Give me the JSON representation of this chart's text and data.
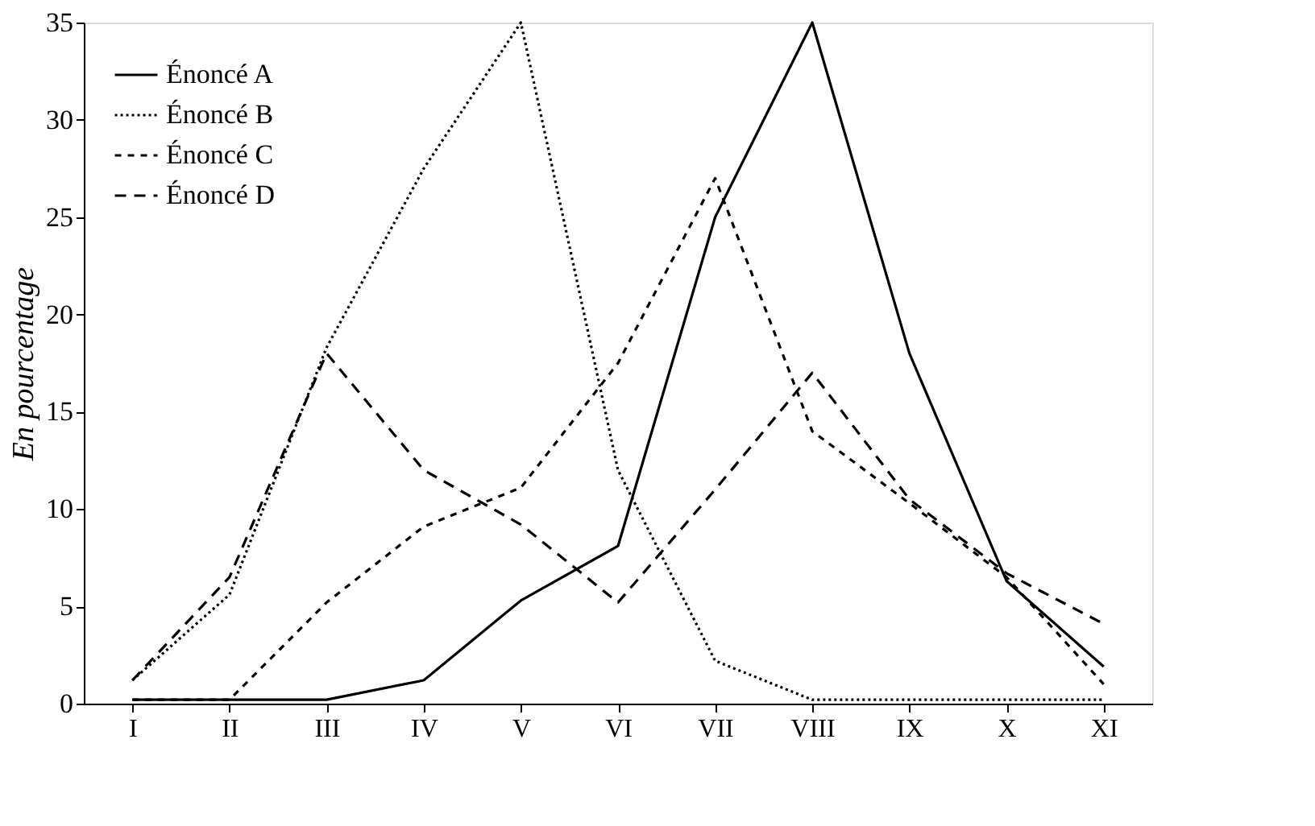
{
  "chart_data": {
    "type": "line",
    "ylabel": "En pourcentage",
    "categories": [
      "I",
      "II",
      "III",
      "IV",
      "V",
      "VI",
      "VII",
      "VIII",
      "IX",
      "X",
      "XI"
    ],
    "ylim": [
      0,
      35
    ],
    "yticks": [
      0,
      5,
      10,
      15,
      20,
      25,
      30,
      35
    ],
    "grid": false,
    "legend": "top left",
    "marker": "none",
    "series": [
      {
        "name": "Énoncé A",
        "color": "#000000",
        "line_style": "solid",
        "values": [
          0.2,
          0.2,
          0.2,
          1.2,
          5.3,
          8.1,
          25,
          35,
          18,
          6.3,
          1.9
        ]
      },
      {
        "name": "Énoncé B",
        "color": "#000000",
        "line_style": "dotted",
        "values": [
          1.2,
          5.6,
          18.3,
          27.5,
          35,
          12,
          2.2,
          0.2,
          0.2,
          0.2,
          0.2
        ]
      },
      {
        "name": "Énoncé C",
        "color": "#000000",
        "line_style": "dashed",
        "values": [
          0.2,
          0.2,
          5.2,
          9.1,
          11.1,
          17.5,
          27,
          14,
          10.3,
          6.5,
          1.0
        ]
      },
      {
        "name": "Énoncé D",
        "color": "#000000",
        "line_style": "dashed",
        "values": [
          1.2,
          6.5,
          18,
          12,
          9.2,
          5.2,
          11,
          17,
          10.5,
          6.7,
          4.1
        ]
      }
    ]
  }
}
